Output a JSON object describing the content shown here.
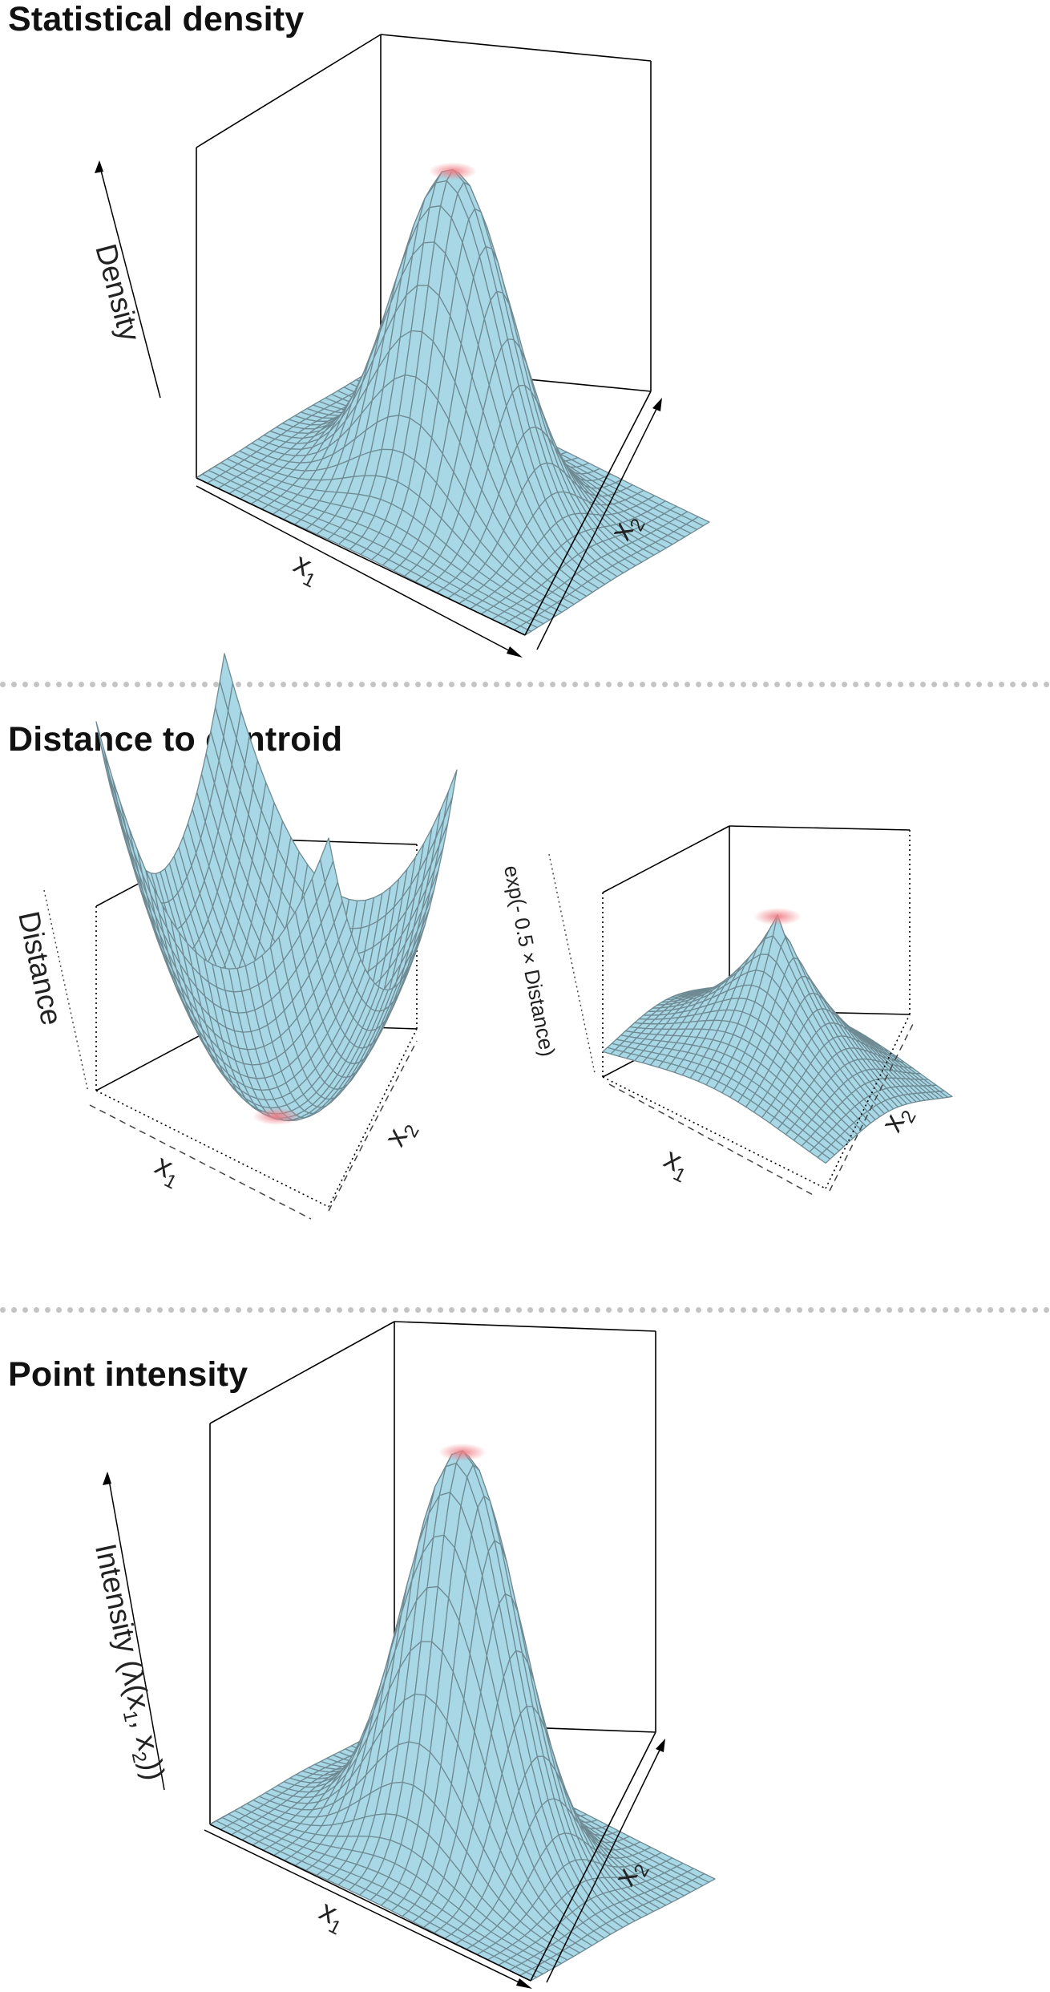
{
  "sections": [
    {
      "title": "Statistical density",
      "plot": {
        "surface": "gaussian",
        "zlabel": "Density",
        "xlabel": "x",
        "xlabel_sub": "1",
        "ylabel": "x",
        "ylabel_sub": "2",
        "marker": "peak"
      }
    },
    {
      "title": "Distance to centroid",
      "plots": [
        {
          "surface": "distance",
          "zlabel": "Distance",
          "xlabel": "x",
          "xlabel_sub": "1",
          "ylabel": "x",
          "ylabel_sub": "2",
          "marker": "minimum"
        },
        {
          "surface": "exp_distance",
          "zlabel": "exp(- 0.5 × Distance)",
          "xlabel": "x",
          "xlabel_sub": "1",
          "ylabel": "x",
          "ylabel_sub": "2",
          "marker": "peak"
        }
      ]
    },
    {
      "title": "Point intensity",
      "plot": {
        "surface": "gaussian",
        "zlabel_pre": "Intensity (λ(x",
        "zlabel_sub1": "1",
        "zlabel_mid": ", x",
        "zlabel_sub2": "2",
        "zlabel_post": "))",
        "xlabel": "x",
        "xlabel_sub": "1",
        "ylabel": "x",
        "ylabel_sub": "2",
        "marker": "peak"
      }
    }
  ],
  "colors": {
    "surface_fill": "#a8d8e6",
    "grid_line": "#6f8a93",
    "box_line": "#000000",
    "marker": "#ef7f86",
    "divider": "#c4c4c4"
  }
}
